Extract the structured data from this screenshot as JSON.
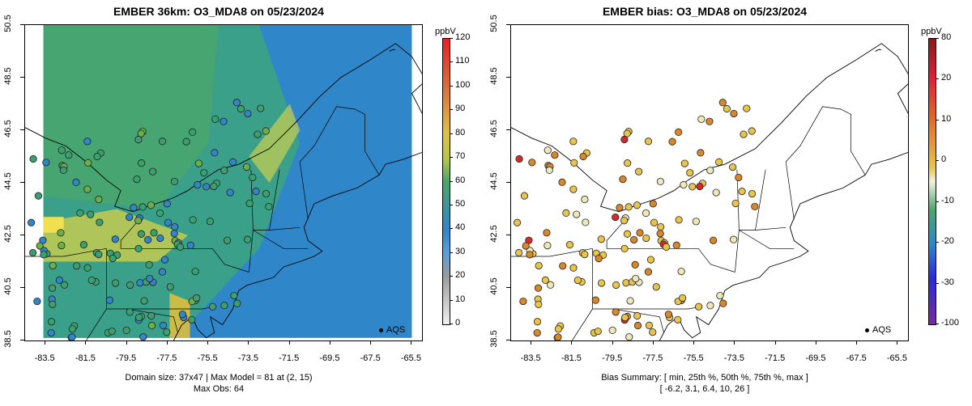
{
  "left": {
    "title": "EMBER 36km: O3_MDA8 on 05/23/2024",
    "footer_line1": "Domain size: 37x47 | Max Model = 81 at (2, 15)",
    "footer_line2": "Max Obs: 64",
    "legend_title": "ppbV",
    "legend_ticks": [
      "120",
      "110",
      "100",
      "90",
      "80",
      "70",
      "60",
      "50",
      "40",
      "30",
      "20",
      "10",
      "0"
    ],
    "aqs_label": "AQS"
  },
  "right": {
    "title": "EMBER bias: O3_MDA8 on 05/23/2024",
    "footer_line1": "Bias Summary: [ min, 25th %, 50th %, 75th %, max ]",
    "footer_line2": "[ -6.2,   3.1,   6.4,   10,   26 ]",
    "legend_title": "ppbV",
    "legend_ticks": [
      "80",
      "20",
      "10",
      "0",
      "-10",
      "-20",
      "-30",
      "-100"
    ],
    "aqs_label": "AQS"
  },
  "axes": {
    "x_ticks": [
      "-83.5",
      "-81.5",
      "-79.5",
      "-77.5",
      "-75.5",
      "-73.5",
      "-71.5",
      "-69.5",
      "-67.5",
      "-65.5"
    ],
    "y_ticks": [
      "50.5",
      "48.5",
      "46.5",
      "44.5",
      "42.5",
      "40.5",
      "38.5"
    ],
    "xlim": [
      -84.5,
      -65.0
    ],
    "ylim": [
      38.5,
      50.5
    ]
  },
  "colors": {
    "model_ocean": "#2f86c9",
    "model_mid": "#3aa08a",
    "model_land_green": "#4aa66a",
    "model_yellow": "#d7d24a",
    "bias_low": "#eee8b8",
    "bias_mid": "#e8c54a",
    "bias_high": "#d8872a",
    "bias_hot": "#d42a2a"
  }
}
